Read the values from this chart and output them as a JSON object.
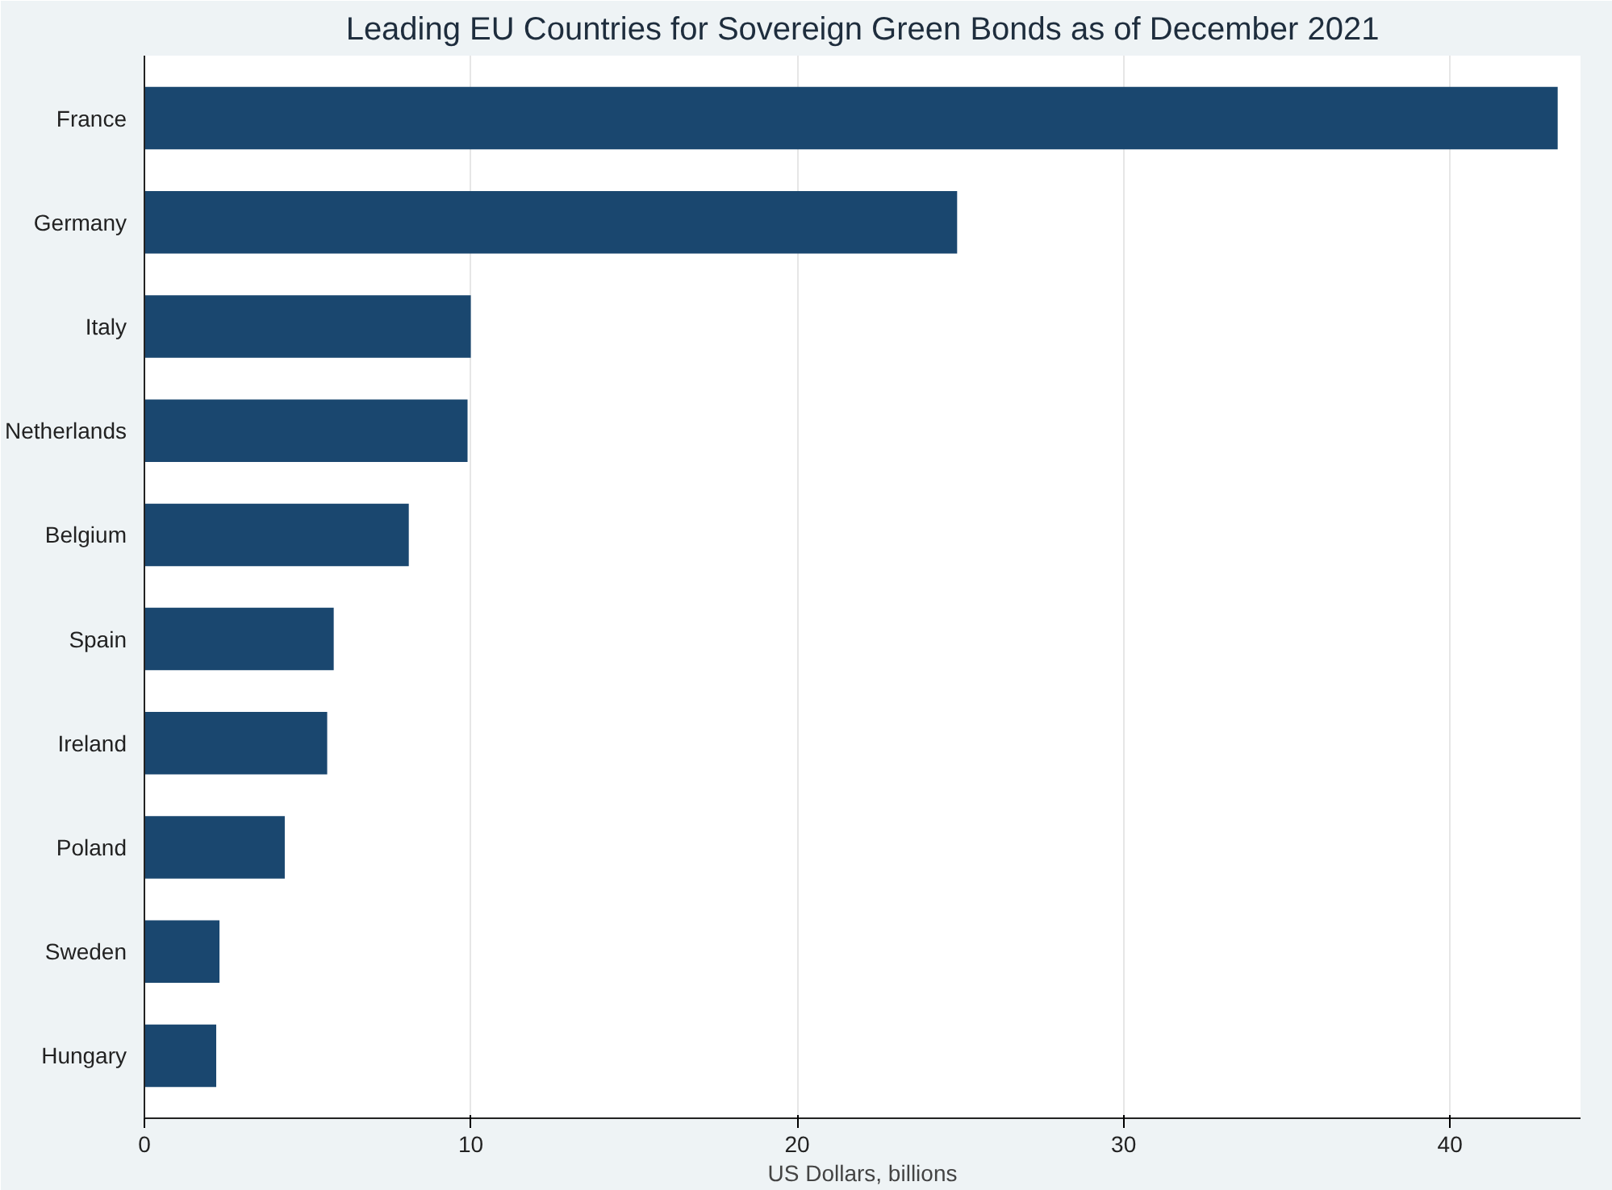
{
  "chart_data": {
    "type": "bar",
    "orientation": "horizontal",
    "title": "Leading EU Countries for Sovereign Green Bonds as of December 2021",
    "xlabel": "US Dollars, billions",
    "categories": [
      "France",
      "Germany",
      "Italy",
      "Netherlands",
      "Belgium",
      "Spain",
      "Ireland",
      "Poland",
      "Sweden",
      "Hungary"
    ],
    "values": [
      43.3,
      24.9,
      10.0,
      9.9,
      8.1,
      5.8,
      5.6,
      4.3,
      2.3,
      2.2
    ],
    "color": "#1a476f",
    "xlim": [
      0,
      44
    ],
    "xticks": [
      0,
      10,
      20,
      30,
      40
    ],
    "grid": "x"
  }
}
